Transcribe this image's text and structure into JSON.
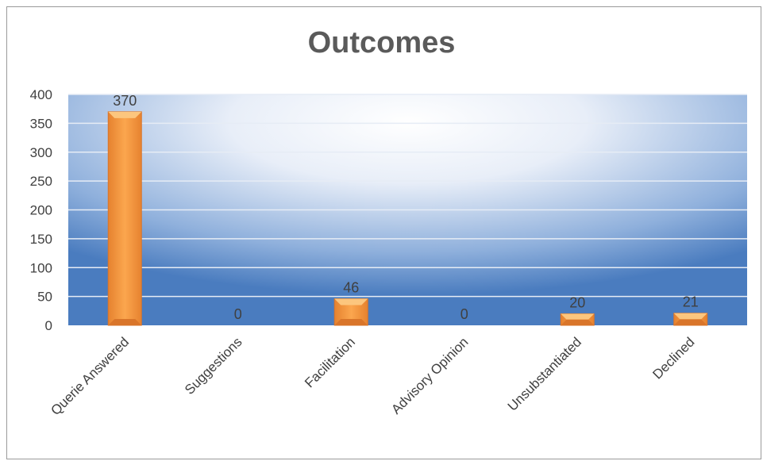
{
  "chart_data": {
    "type": "bar",
    "title": "Outcomes",
    "xlabel": "",
    "ylabel": "",
    "categories": [
      "Querie Answered",
      "Suggestions",
      "Facilitation",
      "Advisory Opinion",
      "Unsubstantiated",
      "Declined"
    ],
    "values": [
      370,
      0,
      46,
      0,
      20,
      21
    ],
    "data_labels": [
      "370",
      "0",
      "46",
      "0",
      "20",
      "21"
    ],
    "y_ticks": [
      "0",
      "50",
      "100",
      "150",
      "200",
      "250",
      "300",
      "350",
      "400"
    ],
    "ylim": [
      0,
      400
    ],
    "grid": true,
    "legend": "none",
    "colors": {
      "bar": "#f79a3d",
      "bar_light": "#fcc67e",
      "bar_dark": "#d9752a",
      "plot_edge": "#4a7cbf",
      "plot_center": "#ffffff",
      "gridline": "#e6ecf5"
    }
  }
}
